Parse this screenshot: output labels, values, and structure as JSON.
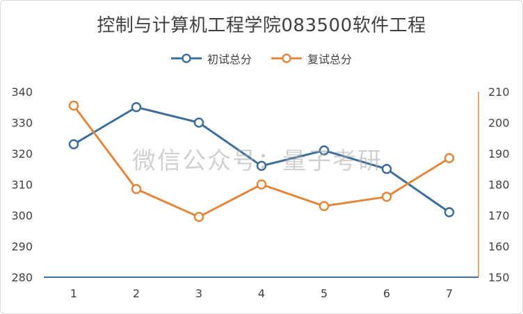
{
  "chart_data": {
    "type": "line",
    "title": "控制与计算机工程学院083500软件工程",
    "categories": [
      "1",
      "2",
      "3",
      "4",
      "5",
      "6",
      "7"
    ],
    "series": [
      {
        "name": "初试总分",
        "axis": "left",
        "color": "#3d6e99",
        "values": [
          323,
          335,
          330,
          316,
          321,
          315,
          301
        ]
      },
      {
        "name": "复试总分",
        "axis": "right",
        "color": "#e0873b",
        "values": [
          205.5,
          178.5,
          169.5,
          180,
          173,
          176,
          188.5
        ]
      }
    ],
    "y_left": {
      "ylim": [
        280,
        340
      ],
      "ticks": [
        280,
        290,
        300,
        310,
        320,
        330,
        340
      ]
    },
    "y_right": {
      "ylim": [
        150,
        210
      ],
      "ticks": [
        150,
        160,
        170,
        180,
        190,
        200,
        210
      ]
    },
    "grid": false,
    "legend_position": "top",
    "watermark": "微信公众号：量子考研"
  }
}
